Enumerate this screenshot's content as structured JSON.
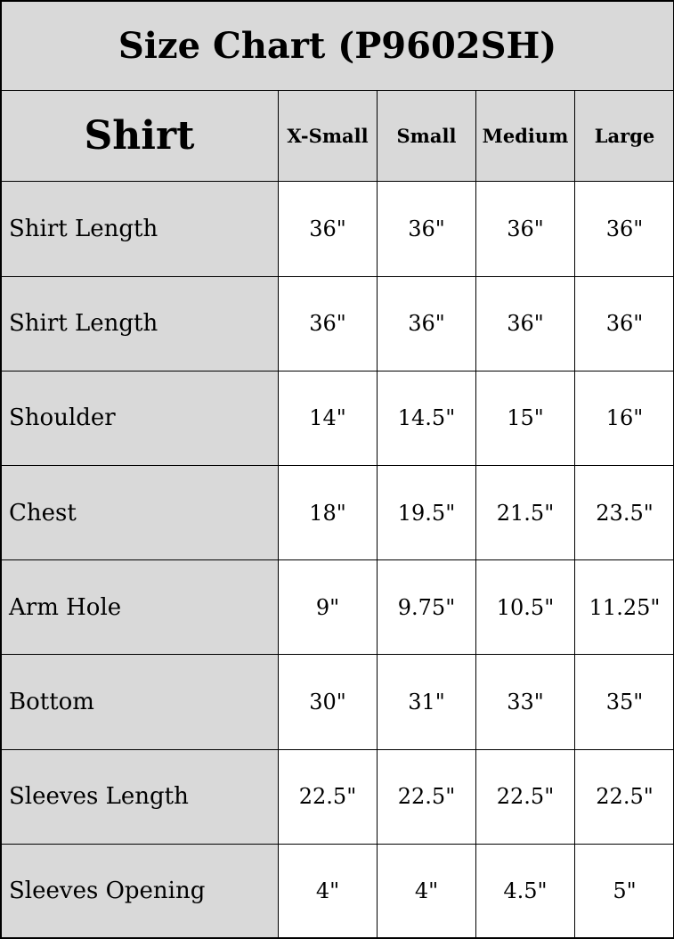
{
  "title": "Size Chart (P9602SH)",
  "header": {
    "category": "Shirt",
    "sizes": [
      "X-Small",
      "Small",
      "Medium",
      "Large"
    ]
  },
  "rows": [
    {
      "label": "Shirt Length",
      "values": [
        "36\"",
        "36\"",
        "36\"",
        "36\""
      ]
    },
    {
      "label": "Shirt Length",
      "values": [
        "36\"",
        "36\"",
        "36\"",
        "36\""
      ]
    },
    {
      "label": "Shoulder",
      "values": [
        "14\"",
        "14.5\"",
        "15\"",
        "16\""
      ]
    },
    {
      "label": "Chest",
      "values": [
        "18\"",
        "19.5\"",
        "21.5\"",
        "23.5\""
      ]
    },
    {
      "label": "Arm Hole",
      "values": [
        "9\"",
        "9.75\"",
        "10.5\"",
        "11.25\""
      ]
    },
    {
      "label": "Bottom",
      "values": [
        "30\"",
        "31\"",
        "33\"",
        "35\""
      ]
    },
    {
      "label": "Sleeves Length",
      "values": [
        "22.5\"",
        "22.5\"",
        "22.5\"",
        "22.5\""
      ]
    },
    {
      "label": "Sleeves Opening",
      "values": [
        "4\"",
        "4\"",
        "4.5\"",
        "5\""
      ]
    }
  ],
  "colors": {
    "header_bg": "#d9d9d9",
    "cell_bg": "#ffffff",
    "border": "#000000"
  }
}
